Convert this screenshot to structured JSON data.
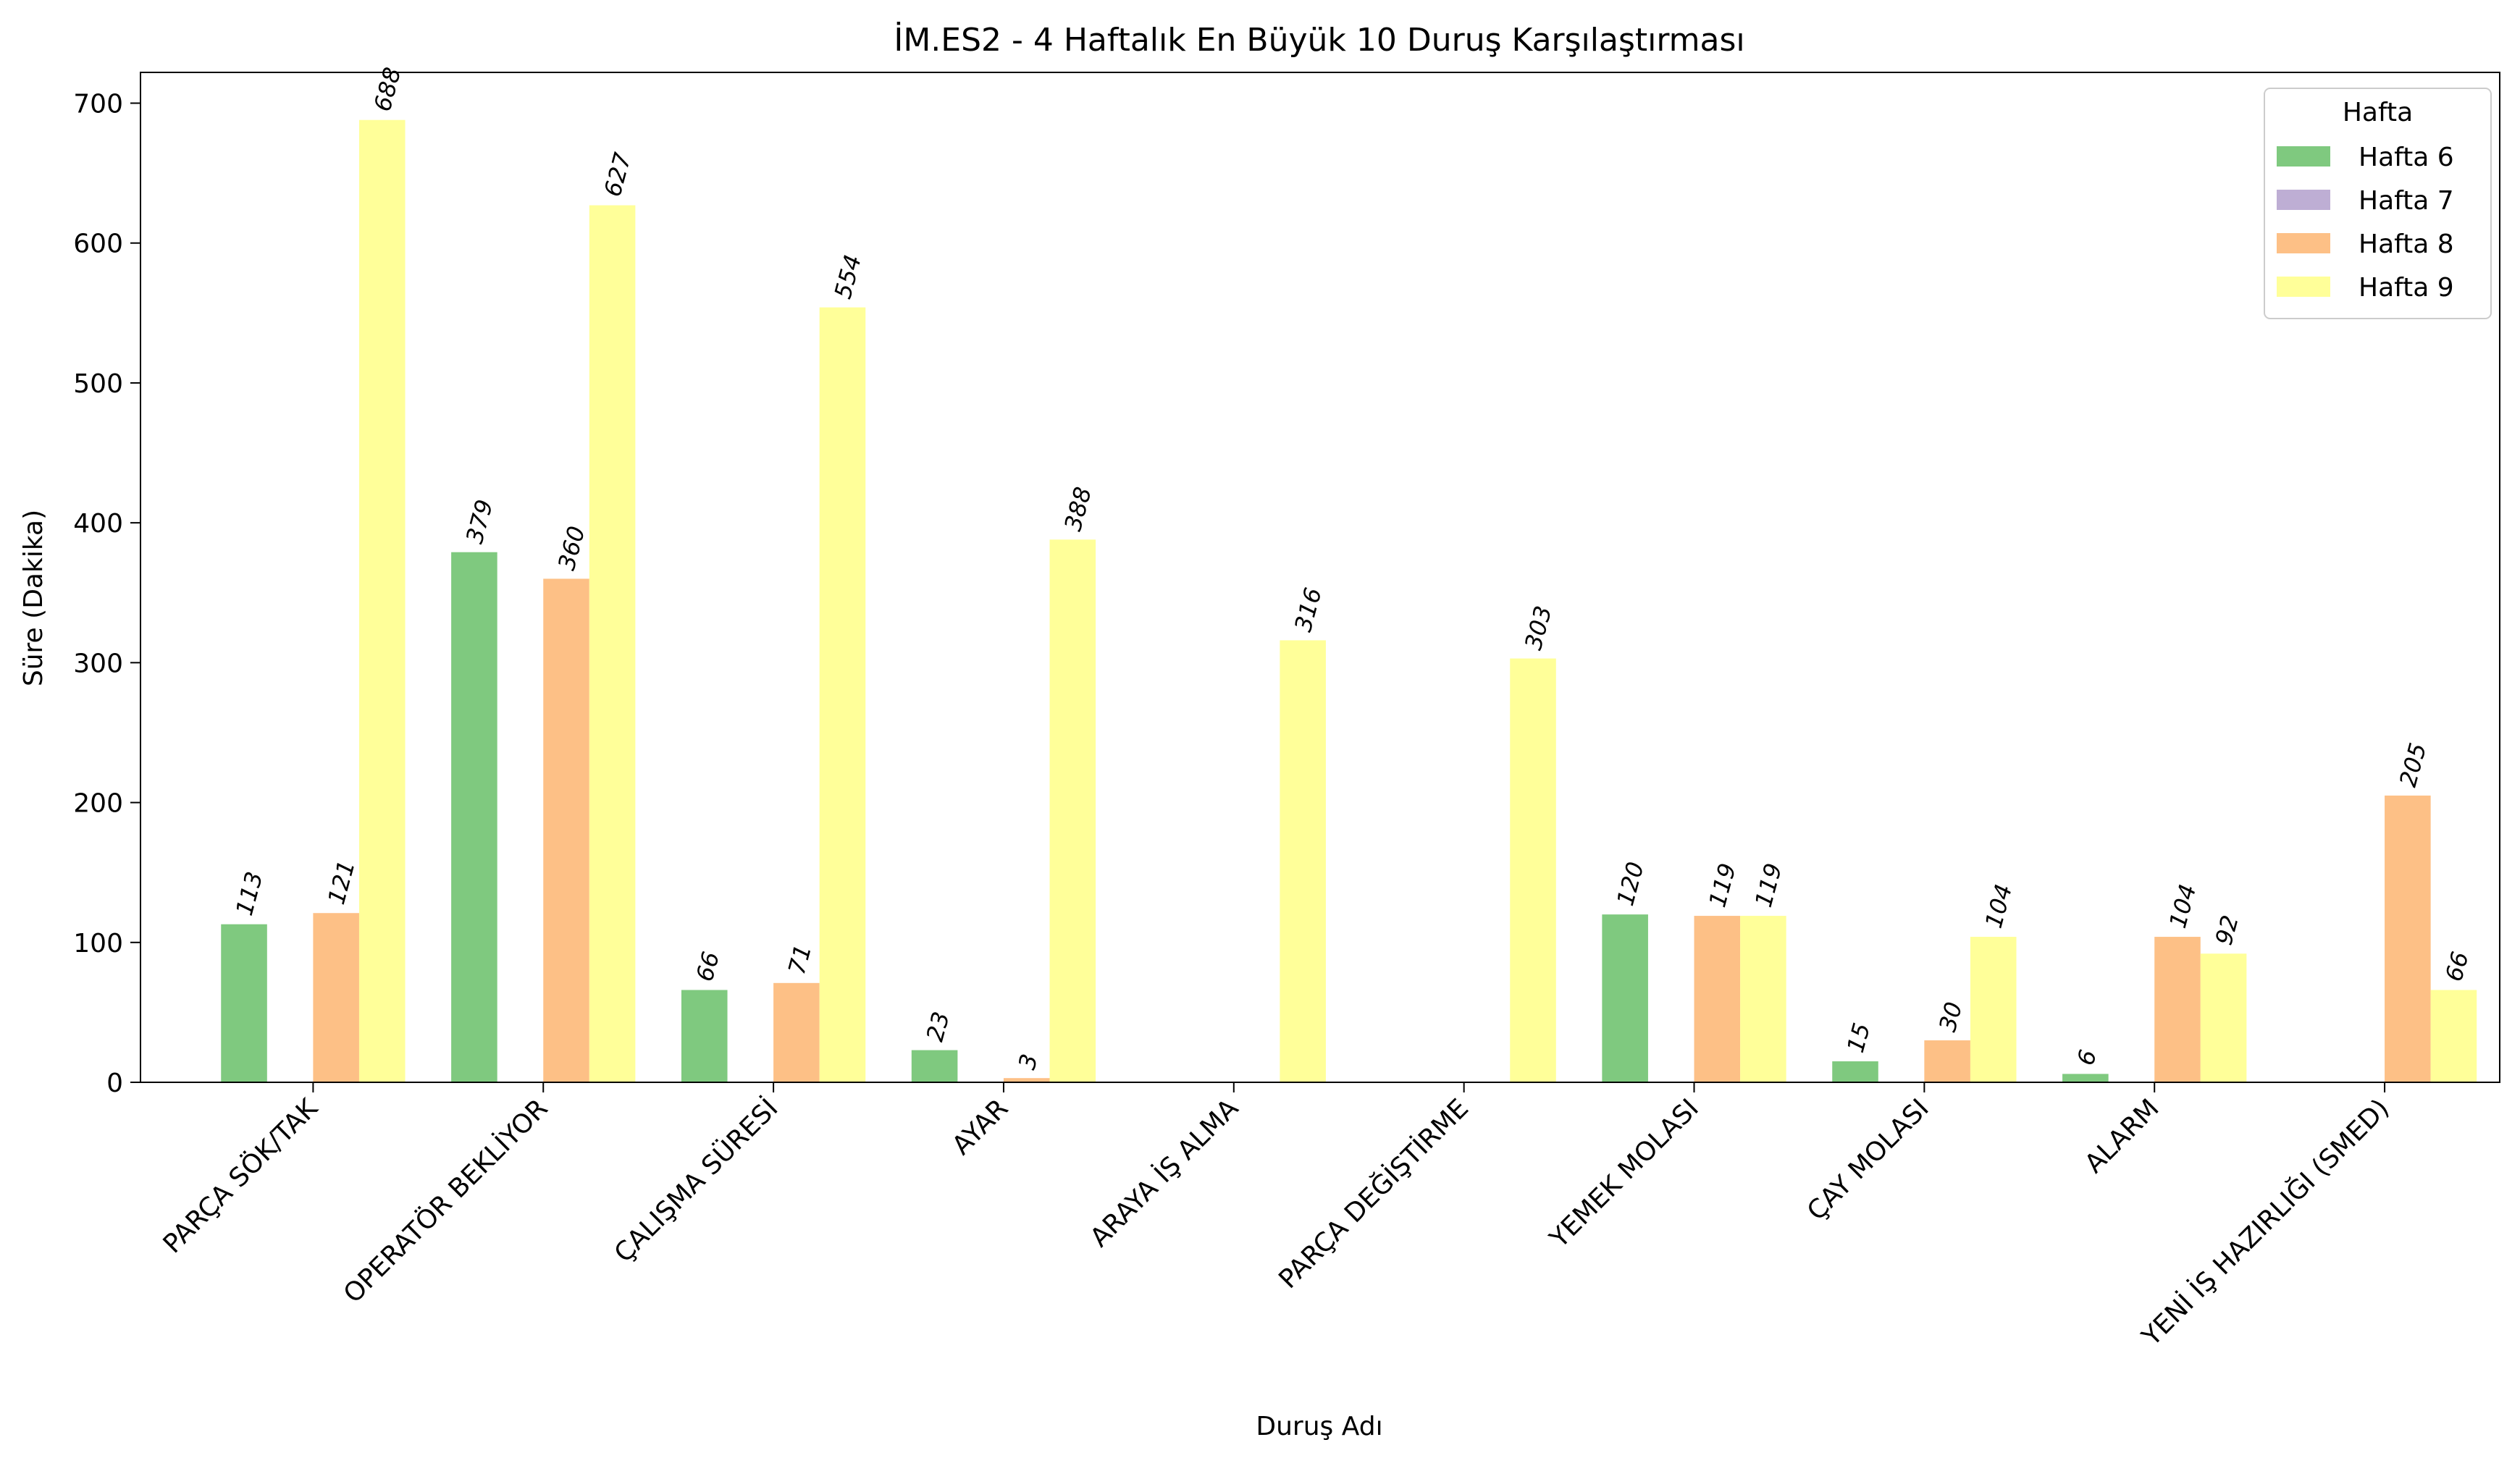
{
  "chart_data": {
    "type": "bar",
    "title": "İM.ES2 - 4 Haftalık En Büyük 10 Duruş Karşılaştırması",
    "xlabel": "Duruş Adı",
    "ylabel": "Süre (Dakika)",
    "ylim": [
      0,
      722
    ],
    "yticks": [
      0,
      100,
      200,
      300,
      400,
      500,
      600,
      700
    ],
    "grid": false,
    "legend": {
      "title": "Hafta",
      "placement": "top-right"
    },
    "categories": [
      "PARÇA SÖK/TAK",
      "OPERATÖR BEKLİYOR",
      "ÇALIŞMA SÜRESİ",
      "AYAR",
      "ARAYA İŞ ALMA",
      "PARÇA DEĞİŞTİRME",
      "YEMEK MOLASI",
      "ÇAY MOLASI",
      "ALARM",
      "YENİ İŞ HAZIRLIĞI (SMED)"
    ],
    "series": [
      {
        "name": "Hafta 6",
        "color": "#7fc97f",
        "values": [
          113,
          379,
          66,
          23,
          0,
          0,
          120,
          15,
          6,
          0
        ]
      },
      {
        "name": "Hafta 7",
        "color": "#beaed4",
        "values": [
          0,
          0,
          0,
          0,
          0,
          0,
          0,
          0,
          0,
          0
        ]
      },
      {
        "name": "Hafta 8",
        "color": "#fdc086",
        "values": [
          121,
          360,
          71,
          3,
          0,
          0,
          119,
          30,
          104,
          205
        ]
      },
      {
        "name": "Hafta 9",
        "color": "#ffff99",
        "values": [
          688,
          627,
          554,
          388,
          316,
          303,
          119,
          104,
          92,
          66
        ]
      }
    ]
  }
}
